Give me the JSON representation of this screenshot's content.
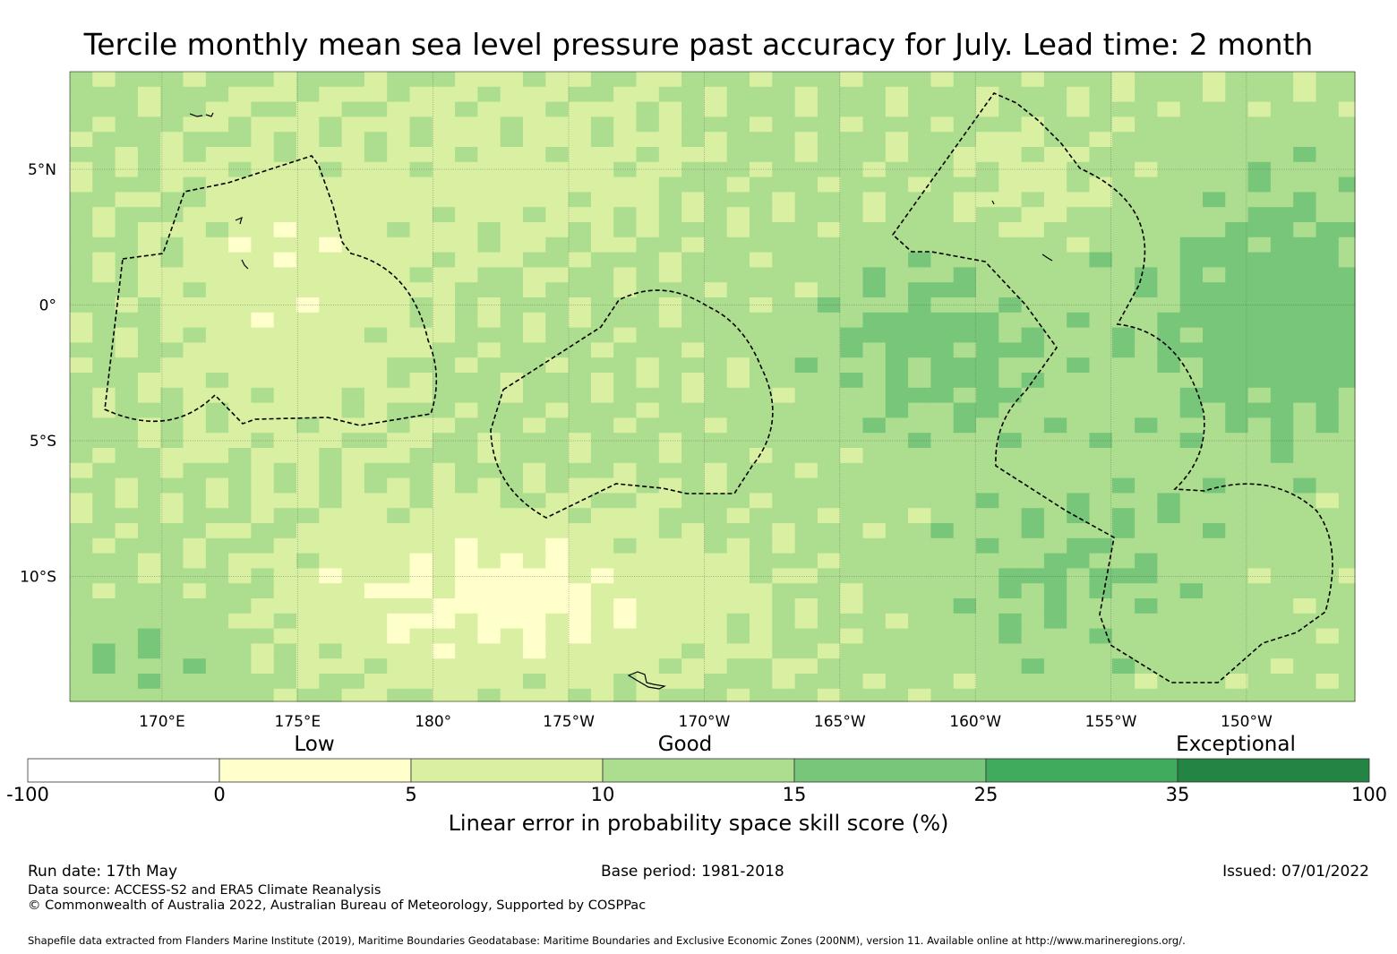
{
  "title": "Tercile monthly mean sea level pressure past accuracy for July. Lead time: 2 month",
  "map": {
    "lon_labels": [
      "170°E",
      "175°E",
      "180°",
      "175°W",
      "170°W",
      "165°W",
      "160°W",
      "155°W",
      "150°W"
    ],
    "lon_values": [
      170,
      175,
      180,
      185,
      190,
      195,
      200,
      205,
      210
    ],
    "lat_labels": [
      "5°N",
      "0°",
      "5°S",
      "10°S"
    ],
    "lat_values": [
      5,
      0,
      -5,
      -10
    ],
    "lon_range": [
      166.6,
      214.0
    ],
    "lat_range": [
      -14.6,
      8.6
    ]
  },
  "legend": {
    "categories": [
      "Low",
      "Good",
      "Exceptional"
    ],
    "ticks": [
      "-100",
      "0",
      "5",
      "10",
      "15",
      "25",
      "35",
      "100"
    ],
    "colors": [
      "#ffffff",
      "#ffffcc",
      "#d9f0a3",
      "#addd8e",
      "#78c679",
      "#41ab5d",
      "#238443"
    ],
    "label": "Linear error in probability space skill score (%)"
  },
  "footer": {
    "run_date": "Run date: 17th May",
    "base_period": "Base period: 1981-2018",
    "issued": "Issued: 07/01/2022",
    "data_source": "Data source: ACCESS-S2 and ERA5 Climate Reanalysis",
    "copyright": "© Commonwealth of Australia 2022, Australian Bureau of Meteorology, Supported by COSPPac",
    "shapefile": "Shapefile data extracted from Flanders Marine Institute (2019), Maritime Boundaries Geodatabase: Maritime Boundaries and Exclusive Economic Zones (200NM), version 11. Available online at http://www.marineregions.org/."
  }
}
